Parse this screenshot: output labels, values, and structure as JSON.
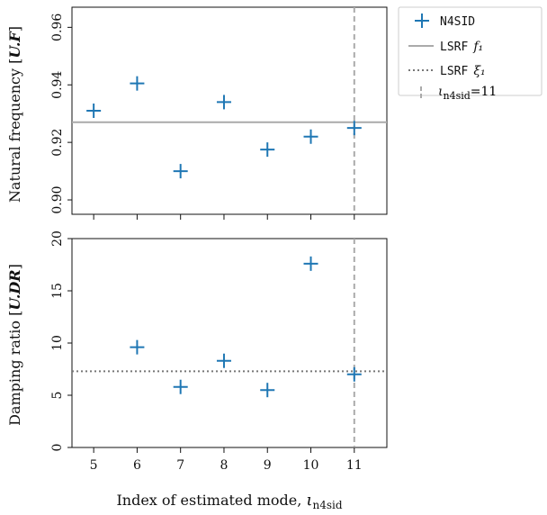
{
  "chart_data": [
    {
      "type": "scatter",
      "ylabel": "Natural frequency [U.F]",
      "ylim": [
        0.895,
        0.967
      ],
      "yticks": [
        "0.90",
        "0.92",
        "0.94",
        "0.96"
      ],
      "ytick_values": [
        0.9,
        0.92,
        0.94,
        0.96
      ],
      "series": [
        {
          "name": "N4SID",
          "x": [
            5,
            6,
            7,
            8,
            9,
            10,
            11
          ],
          "y": [
            0.931,
            0.9405,
            0.91,
            0.934,
            0.9175,
            0.922,
            0.925
          ]
        }
      ],
      "hline": {
        "name": "LSRF f1",
        "y": 0.927
      },
      "vline": {
        "name": "i_n4sid=11",
        "x": 11
      }
    },
    {
      "type": "scatter",
      "ylabel": "Damping ratio [U.DR]",
      "xlabel": "Index of estimated mode, i_n4sid",
      "xlim": [
        4.5,
        11.75
      ],
      "ylim": [
        0,
        20
      ],
      "xticks": [
        "5",
        "6",
        "7",
        "8",
        "9",
        "10",
        "11"
      ],
      "xtick_values": [
        5,
        6,
        7,
        8,
        9,
        10,
        11
      ],
      "yticks": [
        "0",
        "5",
        "10",
        "15",
        "20"
      ],
      "ytick_values": [
        0,
        5,
        10,
        15,
        20
      ],
      "series": [
        {
          "name": "N4SID",
          "x": [
            6,
            7,
            8,
            9,
            10,
            11
          ],
          "y": [
            9.6,
            5.8,
            8.3,
            5.5,
            17.6,
            7.0
          ]
        }
      ],
      "hline": {
        "name": "LSRF xi1",
        "y": 7.3
      },
      "vline": {
        "name": "i_n4sid=11",
        "x": 11
      }
    }
  ],
  "legend": {
    "items": [
      {
        "label": "N4SID",
        "math": ""
      },
      {
        "label": "LSRF",
        "math": "f₁"
      },
      {
        "label": "LSRF",
        "math": "ξ₁"
      },
      {
        "label": "",
        "math": "ι",
        "sub": "n4sid",
        "suffix": "=11"
      }
    ]
  },
  "axes_text": {
    "top_ylabel_main": "Natural frequency [",
    "top_ylabel_unit": "U.F",
    "top_ylabel_close": "]",
    "bottom_ylabel_main": "Damping ratio [",
    "bottom_ylabel_unit": "U.DR",
    "bottom_ylabel_close": "]",
    "xlabel_main": "Index of estimated mode, ",
    "xlabel_math": "ι",
    "xlabel_sub": "n4sid"
  },
  "colors": {
    "marker": "#1f77b4",
    "ref_line": "#aaaaaa",
    "vline": "#aaaaaa",
    "dotted": "#777777"
  }
}
